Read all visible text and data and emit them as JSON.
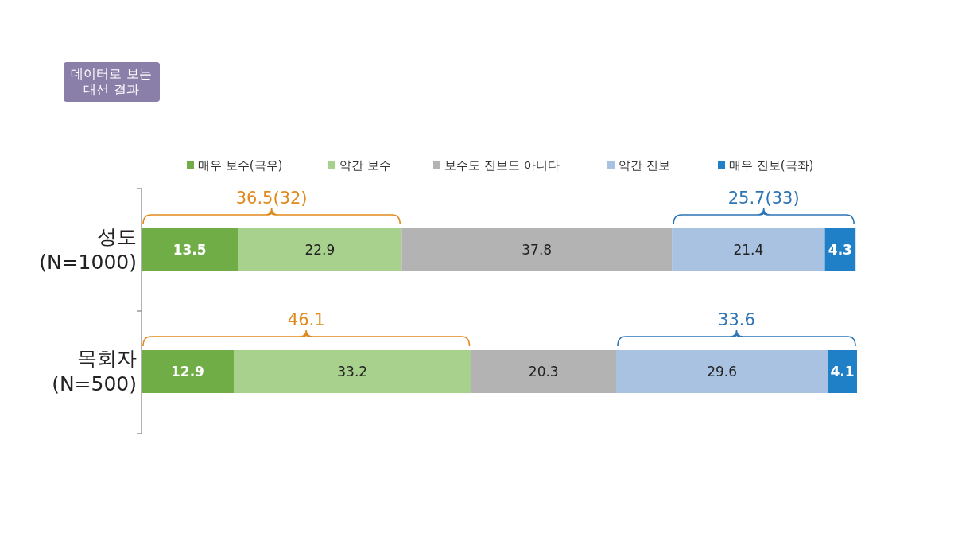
{
  "chart_data": {
    "type": "bar",
    "orientation": "horizontal",
    "stacked": true,
    "title": "데이터로 보는\n대선 결과",
    "categories": [
      "성도\n(N=1000)",
      "목회자\n(N=500)"
    ],
    "series": [
      {
        "name": "매우 보수(극우)",
        "color": "#70ad47",
        "values": [
          13.5,
          12.9
        ]
      },
      {
        "name": "약간 보수",
        "color": "#a9d18e",
        "values": [
          22.9,
          33.2
        ]
      },
      {
        "name": "보수도 진보도 아니다",
        "color": "#b3b3b3",
        "values": [
          37.8,
          20.3
        ]
      },
      {
        "name": "약간 진보",
        "color": "#a9c2e2",
        "values": [
          21.4,
          29.6
        ]
      },
      {
        "name": "매우 진보(극좌)",
        "color": "#1f80c8",
        "values": [
          4.3,
          4.1
        ]
      }
    ],
    "data_labels": true,
    "legend": "top",
    "tick_labels": "y",
    "annotations": [
      "36.5(32)",
      "25.7(33)",
      "46.1",
      "33.6"
    ]
  }
}
